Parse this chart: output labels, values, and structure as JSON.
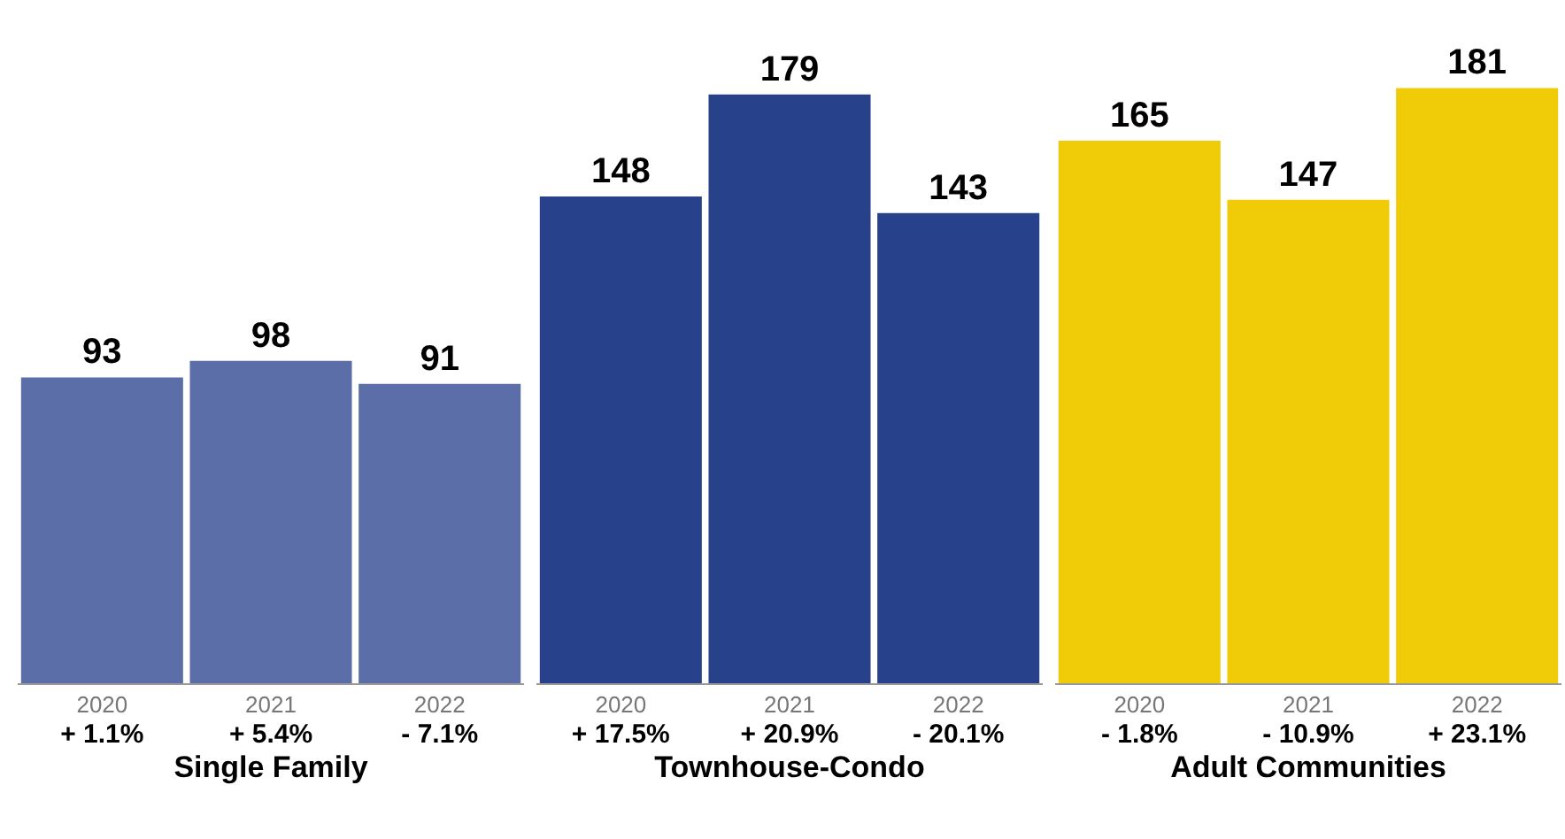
{
  "chart_data": [
    {
      "type": "bar",
      "xlabel": "Single Family",
      "categories": [
        "2020\n+ 1.1%",
        "2021\n+ 5.4%",
        "2022\n- 7.1%"
      ],
      "values": [
        93,
        98,
        91
      ],
      "color": "#5c6ea8",
      "data_labels": true
    },
    {
      "type": "bar",
      "xlabel": "Townhouse-Condo",
      "categories": [
        "2020\n+ 17.5%",
        "2021\n+ 20.9%",
        "2022\n- 20.1%"
      ],
      "values": [
        148,
        179,
        143
      ],
      "color": "#27418b",
      "data_labels": true
    },
    {
      "type": "bar",
      "xlabel": "Adult Communities",
      "categories": [
        "2020\n- 1.8%",
        "2021\n- 10.9%",
        "2022\n+ 23.1%"
      ],
      "values": [
        165,
        147,
        181
      ],
      "color": "#efcb08",
      "data_labels": true
    }
  ]
}
